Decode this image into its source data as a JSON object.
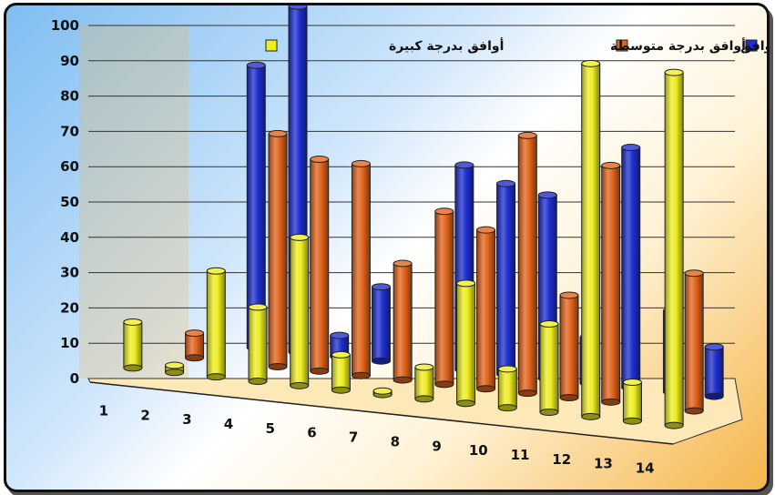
{
  "chart_data": {
    "type": "bar",
    "title": "",
    "xlabel": "",
    "ylabel": "",
    "ylim": [
      0,
      100
    ],
    "yticks": [
      0,
      10,
      20,
      30,
      40,
      50,
      60,
      70,
      80,
      90,
      100
    ],
    "categories": [
      "1",
      "2",
      "3",
      "4",
      "5",
      "6",
      "7",
      "8",
      "9",
      "10",
      "11",
      "12",
      "13",
      "14"
    ],
    "grid": true,
    "legend_position": "top",
    "series": [
      {
        "name": "لا أوافق",
        "color": "#1f2fd0",
        "values": [
          0,
          0,
          80,
          98,
          6,
          21,
          0,
          58,
          54,
          52,
          13,
          68,
          23,
          14
        ]
      },
      {
        "name": "أوافق بدرجة متوسطة",
        "color": "#e2641c",
        "values": [
          0,
          7,
          0,
          66,
          60,
          60,
          33,
          49,
          45,
          73,
          29,
          67,
          0,
          39
        ]
      },
      {
        "name": "أوافق بدرجة كبيرة",
        "color": "#eded22",
        "values": [
          13,
          2,
          30,
          21,
          42,
          10,
          1,
          9,
          34,
          11,
          25,
          100,
          11,
          100
        ]
      }
    ]
  }
}
